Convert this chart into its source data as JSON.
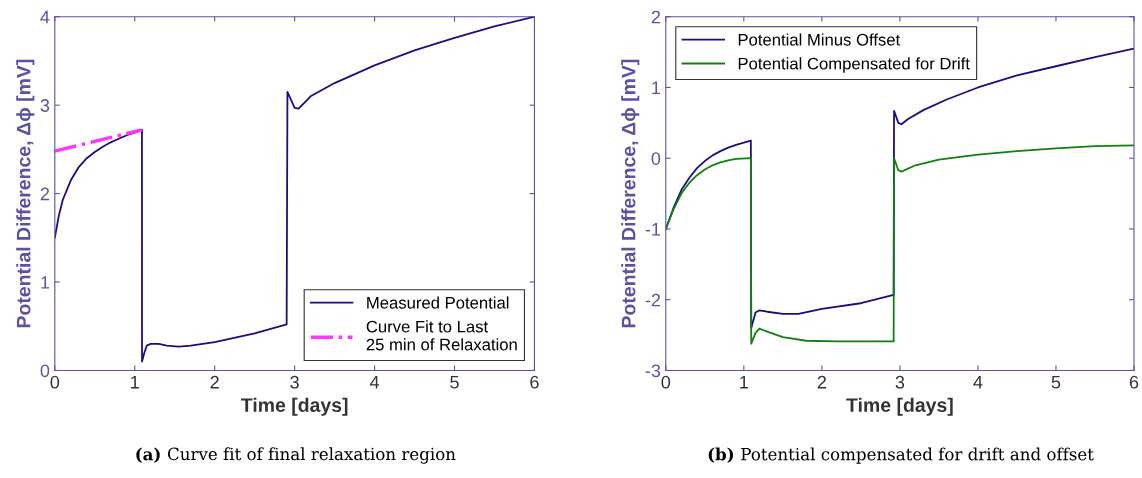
{
  "chart_data": [
    {
      "type": "line",
      "xlabel": "Time [days]",
      "ylabel": "Potential Difference, Δϕ [mV]",
      "xlim": [
        0,
        6
      ],
      "ylim": [
        0,
        4
      ],
      "xticks": [
        0,
        1,
        2,
        3,
        4,
        5,
        6
      ],
      "yticks": [
        0,
        1,
        2,
        3,
        4
      ],
      "grid": false,
      "legend": "bottom right",
      "annotations": [
        "(a) Curve fit of final relaxation region"
      ],
      "series": [
        {
          "name": "Measured Potential",
          "color": "#1a0f80",
          "line_style": "solid",
          "x": [
            0,
            0.05,
            0.1,
            0.2,
            0.3,
            0.4,
            0.5,
            0.6,
            0.7,
            0.8,
            0.9,
            1.0,
            1.09,
            1.091,
            1.12,
            1.15,
            1.2,
            1.3,
            1.4,
            1.55,
            1.7,
            2.0,
            2.5,
            2.9,
            2.91,
            3.0,
            3.05,
            3.2,
            3.5,
            4.0,
            4.5,
            5.0,
            5.5,
            6.0
          ],
          "values": [
            1.5,
            1.75,
            1.93,
            2.15,
            2.3,
            2.4,
            2.47,
            2.53,
            2.58,
            2.62,
            2.66,
            2.69,
            2.72,
            0.1,
            0.2,
            0.28,
            0.3,
            0.3,
            0.28,
            0.27,
            0.28,
            0.32,
            0.42,
            0.52,
            3.15,
            2.97,
            2.96,
            3.1,
            3.25,
            3.45,
            3.62,
            3.76,
            3.89,
            4.0
          ]
        },
        {
          "name": "Curve Fit to Last\n25 min of Relaxation",
          "color": "#ff33ff",
          "line_style": "dashdot",
          "x": [
            0,
            1.09
          ],
          "values": [
            2.48,
            2.72
          ]
        }
      ]
    },
    {
      "type": "line",
      "xlabel": "Time [days]",
      "ylabel": "Potential Difference, Δϕ [mV]",
      "xlim": [
        0,
        6
      ],
      "ylim": [
        -3,
        2
      ],
      "xticks": [
        0,
        1,
        2,
        3,
        4,
        5,
        6
      ],
      "yticks": [
        -3,
        -2,
        -1,
        0,
        1,
        2
      ],
      "grid": false,
      "legend": "top left",
      "annotations": [
        "(b) Potential compensated for drift and offset"
      ],
      "series": [
        {
          "name": "Potential Minus Offset",
          "color": "#1a0f80",
          "line_style": "solid",
          "x": [
            0,
            0.1,
            0.2,
            0.3,
            0.4,
            0.5,
            0.6,
            0.7,
            0.8,
            0.9,
            1.0,
            1.09,
            1.095,
            1.15,
            1.2,
            1.3,
            1.5,
            1.7,
            2.0,
            2.5,
            2.92,
            2.925,
            2.98,
            3.02,
            3.1,
            3.3,
            3.6,
            4.0,
            4.5,
            5.0,
            5.5,
            6.0
          ],
          "values": [
            -1,
            -0.7,
            -0.45,
            -0.28,
            -0.14,
            -0.04,
            0.04,
            0.1,
            0.15,
            0.19,
            0.22,
            0.25,
            -2.4,
            -2.18,
            -2.15,
            -2.17,
            -2.2,
            -2.2,
            -2.13,
            -2.05,
            -1.93,
            0.67,
            0.5,
            0.48,
            0.55,
            0.68,
            0.83,
            1.0,
            1.17,
            1.3,
            1.43,
            1.55
          ]
        },
        {
          "name": "Potential Compensated for Drift",
          "color": "#108010",
          "line_style": "solid",
          "x": [
            0,
            0.1,
            0.2,
            0.3,
            0.4,
            0.5,
            0.6,
            0.7,
            0.8,
            0.9,
            1.09,
            1.095,
            1.15,
            1.2,
            1.3,
            1.5,
            1.8,
            2.2,
            2.92,
            2.925,
            2.98,
            3.02,
            3.2,
            3.5,
            4.0,
            4.5,
            5.0,
            5.5,
            6.0
          ],
          "values": [
            -1,
            -0.72,
            -0.5,
            -0.35,
            -0.24,
            -0.16,
            -0.1,
            -0.06,
            -0.03,
            -0.01,
            0.0,
            -2.62,
            -2.47,
            -2.41,
            -2.45,
            -2.53,
            -2.58,
            -2.59,
            -2.59,
            0.0,
            -0.17,
            -0.19,
            -0.1,
            -0.02,
            0.05,
            0.1,
            0.14,
            0.17,
            0.18
          ]
        }
      ]
    }
  ]
}
